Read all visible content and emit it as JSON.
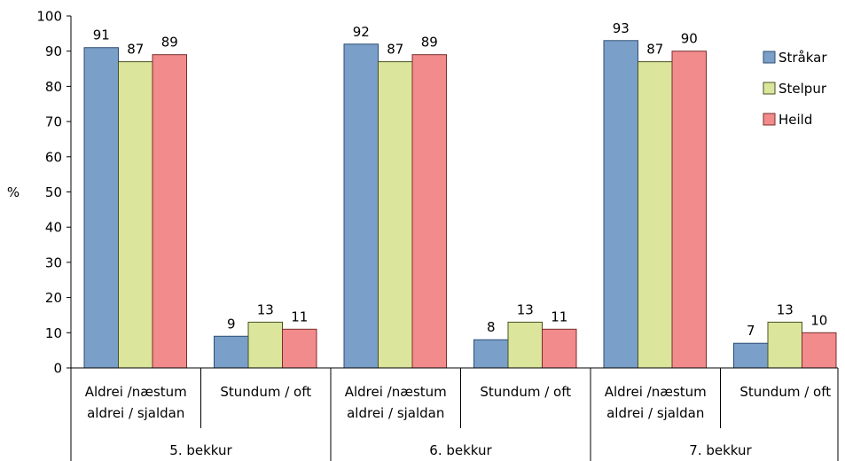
{
  "chart_data": {
    "type": "bar",
    "ylabel": "%",
    "ylim": [
      0,
      100
    ],
    "yticks": [
      0,
      10,
      20,
      30,
      40,
      50,
      60,
      70,
      80,
      90,
      100
    ],
    "grid": false,
    "legend_position": "top-right",
    "categories": [
      {
        "label_lines": [
          "Aldrei /næstum",
          "aldrei / sjaldan"
        ],
        "group": "5. bekkur"
      },
      {
        "label_lines": [
          "Stundum / oft"
        ],
        "group": "5. bekkur"
      },
      {
        "label_lines": [
          "Aldrei /næstum",
          "aldrei / sjaldan"
        ],
        "group": "6. bekkur"
      },
      {
        "label_lines": [
          "Stundum / oft"
        ],
        "group": "6. bekkur"
      },
      {
        "label_lines": [
          "Aldrei /næstum",
          "aldrei / sjaldan"
        ],
        "group": "7. bekkur"
      },
      {
        "label_lines": [
          "Stundum / oft"
        ],
        "group": "7. bekkur"
      }
    ],
    "groups": [
      "5. bekkur",
      "6. bekkur",
      "7. bekkur"
    ],
    "series": [
      {
        "name": "Stråkar",
        "color": "#7aa0c9",
        "stroke": "#2d4d73",
        "values": [
          91,
          9,
          92,
          8,
          93,
          7
        ]
      },
      {
        "name": "Stelpur",
        "color": "#dbe59c",
        "stroke": "#4a5220",
        "values": [
          87,
          13,
          87,
          13,
          87,
          13
        ]
      },
      {
        "name": "Heild",
        "color": "#f28b8b",
        "stroke": "#7a2e2e",
        "values": [
          89,
          11,
          89,
          11,
          90,
          10
        ]
      }
    ]
  }
}
